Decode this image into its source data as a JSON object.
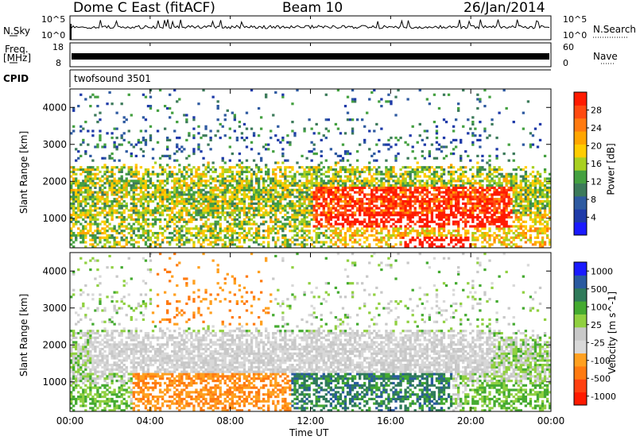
{
  "header": {
    "station": "Dome C East (fitACF)",
    "beam": "Beam 10",
    "date": "26/Jan/2014"
  },
  "nsky_panel": {
    "label": "N.Sky",
    "tick_top": "10^5",
    "tick_bottom": "10^0",
    "right_label": "N.Search",
    "right_tick_top": "10^5",
    "right_tick_bottom": "10^0"
  },
  "freq_panel": {
    "label_line1": "Freq.",
    "label_line2": "[MHz]",
    "tick_top": "18",
    "tick_bottom": "8",
    "right_label": "Nave",
    "right_tick_top": "60",
    "right_tick_bottom": "0"
  },
  "cpid_panel": {
    "label": "CPID",
    "value": "twofsound 3501"
  },
  "colors": {
    "power_scale": [
      "#1a1aff",
      "#1e3aa8",
      "#2e5aa0",
      "#3c7a5a",
      "#44a040",
      "#a8d020",
      "#ffcc00",
      "#ffa500",
      "#ff7a10",
      "#ff4a10",
      "#ff1a00"
    ],
    "velocity_scale": [
      "#1a1aff",
      "#2a5aa0",
      "#2f7a5a",
      "#44aa30",
      "#90d040",
      "#c8c8c8",
      "#d8d8d8",
      "#ffa020",
      "#ff7a10",
      "#ff4010",
      "#ff1a00"
    ]
  },
  "chart_data": [
    {
      "type": "heatmap",
      "parameter": "power",
      "ylabel": "Slant Range [km]",
      "yticks": [
        "1000",
        "2000",
        "3000",
        "4000"
      ],
      "ylim": [
        200,
        4500
      ],
      "xlim": [
        "00:00",
        "24:00"
      ],
      "colorbar_label": "Power [dB]",
      "colorbar_ticks": [
        "4",
        "8",
        "12",
        "16",
        "20",
        "24",
        "28"
      ],
      "colorbar_range": [
        0,
        32
      ]
    },
    {
      "type": "heatmap",
      "parameter": "velocity",
      "ylabel": "Slant Range [km]",
      "yticks": [
        "1000",
        "2000",
        "3000",
        "4000"
      ],
      "ylim": [
        200,
        4500
      ],
      "xlabel": "Time UT",
      "xticks": [
        "00:00",
        "04:00",
        "08:00",
        "12:00",
        "16:00",
        "20:00",
        "00:00"
      ],
      "colorbar_label": "Velocity [m s^-1]",
      "colorbar_ticks": [
        "1000",
        "500",
        "100",
        "25",
        "-25",
        "-100",
        "-500",
        "-1000"
      ]
    }
  ]
}
